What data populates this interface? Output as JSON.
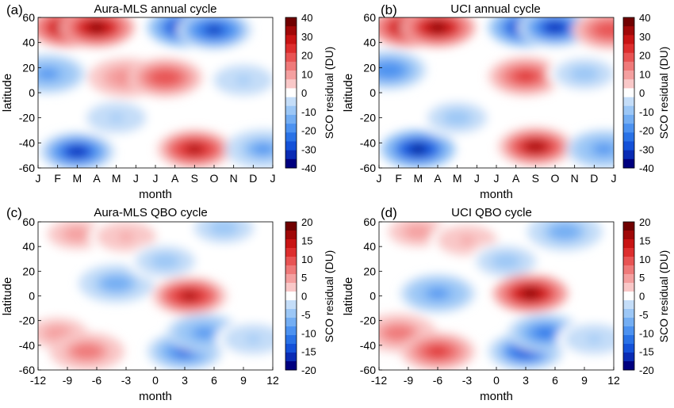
{
  "figure": {
    "colorbar_label": "SCO residual (DU)",
    "ylabel": "latitude",
    "xlabel": "month"
  },
  "colors": {
    "scale": [
      "#00007f",
      "#0a2bb4",
      "#1451d8",
      "#2a72e6",
      "#4d92f0",
      "#74aef3",
      "#9cc7f6",
      "#c4ddf8",
      "#ffffff",
      "#f9c8c8",
      "#f4a0a0",
      "#ef7a7a",
      "#e85454",
      "#dd2e2e",
      "#c81414",
      "#a00808",
      "#700000"
    ]
  },
  "chart_data": [
    {
      "type": "heatmap",
      "panel_letter": "(a)",
      "title": "Aura-MLS annual cycle",
      "xlabel": "month",
      "ylabel": "latitude",
      "x_ticks": [
        "J",
        "F",
        "M",
        "A",
        "M",
        "J",
        "J",
        "A",
        "S",
        "O",
        "N",
        "D",
        "J"
      ],
      "y_ticks": [
        "60",
        "40",
        "20",
        "0",
        "-20",
        "-40",
        "-60"
      ],
      "ylim": [
        -60,
        60
      ],
      "colorbar": {
        "label": "SCO residual (DU)",
        "range": [
          -40,
          40
        ],
        "ticks": [
          "40",
          "30",
          "20",
          "10",
          "0",
          "-10",
          "-20",
          "-30",
          "-40"
        ]
      },
      "features": [
        {
          "x": 1.5,
          "y": 52,
          "value": 38
        },
        {
          "x": 3.0,
          "y": 52,
          "value": 40
        },
        {
          "x": 7.5,
          "y": 52,
          "value": -38
        },
        {
          "x": 9.0,
          "y": 50,
          "value": -34
        },
        {
          "x": 0.5,
          "y": 15,
          "value": -20
        },
        {
          "x": 4.5,
          "y": 12,
          "value": 14
        },
        {
          "x": 6.5,
          "y": 12,
          "value": 22
        },
        {
          "x": 10.5,
          "y": 10,
          "value": -8
        },
        {
          "x": 2.0,
          "y": -47,
          "value": -36
        },
        {
          "x": 8.0,
          "y": -45,
          "value": 34
        },
        {
          "x": 11.5,
          "y": -45,
          "value": -18
        },
        {
          "x": 4.0,
          "y": -20,
          "value": -8
        }
      ]
    },
    {
      "type": "heatmap",
      "panel_letter": "(b)",
      "title": "UCI annual cycle",
      "xlabel": "month",
      "ylabel": "latitude",
      "x_ticks": [
        "J",
        "F",
        "M",
        "A",
        "M",
        "J",
        "J",
        "A",
        "S",
        "O",
        "N",
        "D",
        "J"
      ],
      "y_ticks": [
        "60",
        "40",
        "20",
        "0",
        "-20",
        "-40",
        "-60"
      ],
      "ylim": [
        -60,
        60
      ],
      "colorbar": {
        "label": "SCO residual (DU)",
        "range": [
          -40,
          40
        ],
        "ticks": [
          "40",
          "30",
          "20",
          "10",
          "0",
          "-10",
          "-20",
          "-30",
          "-40"
        ]
      },
      "features": [
        {
          "x": 1.5,
          "y": 52,
          "value": 40
        },
        {
          "x": 3.0,
          "y": 52,
          "value": 38
        },
        {
          "x": 7.5,
          "y": 52,
          "value": -40
        },
        {
          "x": 9.0,
          "y": 52,
          "value": -36
        },
        {
          "x": 11.8,
          "y": 50,
          "value": 22
        },
        {
          "x": 0.5,
          "y": 18,
          "value": -22
        },
        {
          "x": 7.5,
          "y": 13,
          "value": 26
        },
        {
          "x": 10.5,
          "y": 15,
          "value": -10
        },
        {
          "x": 2.0,
          "y": -45,
          "value": -38
        },
        {
          "x": 8.0,
          "y": -43,
          "value": 36
        },
        {
          "x": 11.5,
          "y": -45,
          "value": -20
        },
        {
          "x": 4.0,
          "y": -20,
          "value": -10
        }
      ]
    },
    {
      "type": "heatmap",
      "panel_letter": "(c)",
      "title": "Aura-MLS QBO cycle",
      "xlabel": "month",
      "ylabel": "latitude",
      "x_ticks": [
        "-12",
        "-9",
        "-6",
        "-3",
        "0",
        "3",
        "6",
        "9",
        "12"
      ],
      "y_ticks": [
        "60",
        "40",
        "20",
        "0",
        "-20",
        "-40",
        "-60"
      ],
      "ylim": [
        -60,
        60
      ],
      "colorbar": {
        "label": "SCO residual (DU)",
        "range": [
          -20,
          20
        ],
        "ticks": [
          "20",
          "15",
          "10",
          "5",
          "0",
          "-5",
          "-10",
          "-15",
          "-20"
        ]
      },
      "features": [
        {
          "x": -8,
          "y": 50,
          "value": 5
        },
        {
          "x": -3,
          "y": 48,
          "value": 4
        },
        {
          "x": 7,
          "y": 55,
          "value": -6
        },
        {
          "x": -4,
          "y": 10,
          "value": -8
        },
        {
          "x": 1,
          "y": 28,
          "value": -6
        },
        {
          "x": 3.5,
          "y": 0,
          "value": 17
        },
        {
          "x": -10,
          "y": -30,
          "value": 6
        },
        {
          "x": -7,
          "y": -45,
          "value": 8
        },
        {
          "x": 3,
          "y": -45,
          "value": -14
        },
        {
          "x": 5,
          "y": -30,
          "value": -10
        },
        {
          "x": 10,
          "y": -35,
          "value": -4
        }
      ]
    },
    {
      "type": "heatmap",
      "panel_letter": "(d)",
      "title": "UCI QBO cycle",
      "xlabel": "month",
      "ylabel": "latitude",
      "x_ticks": [
        "-12",
        "-9",
        "-6",
        "-3",
        "0",
        "3",
        "6",
        "9",
        "12"
      ],
      "y_ticks": [
        "60",
        "40",
        "20",
        "0",
        "-20",
        "-40",
        "-60"
      ],
      "ylim": [
        -60,
        60
      ],
      "colorbar": {
        "label": "SCO residual (DU)",
        "range": [
          -20,
          20
        ],
        "ticks": [
          "20",
          "15",
          "10",
          "5",
          "0",
          "-5",
          "-10",
          "-15",
          "-20"
        ]
      },
      "features": [
        {
          "x": -8,
          "y": 52,
          "value": 5
        },
        {
          "x": -3,
          "y": 45,
          "value": 4
        },
        {
          "x": 7,
          "y": 52,
          "value": -8
        },
        {
          "x": -6,
          "y": 2,
          "value": -10
        },
        {
          "x": 1,
          "y": 28,
          "value": -6
        },
        {
          "x": 3.5,
          "y": 2,
          "value": 20
        },
        {
          "x": -10,
          "y": -30,
          "value": 8
        },
        {
          "x": -6,
          "y": -45,
          "value": 12
        },
        {
          "x": 3,
          "y": -45,
          "value": -15
        },
        {
          "x": 5,
          "y": -30,
          "value": -12
        },
        {
          "x": 10,
          "y": -35,
          "value": -4
        }
      ]
    }
  ]
}
